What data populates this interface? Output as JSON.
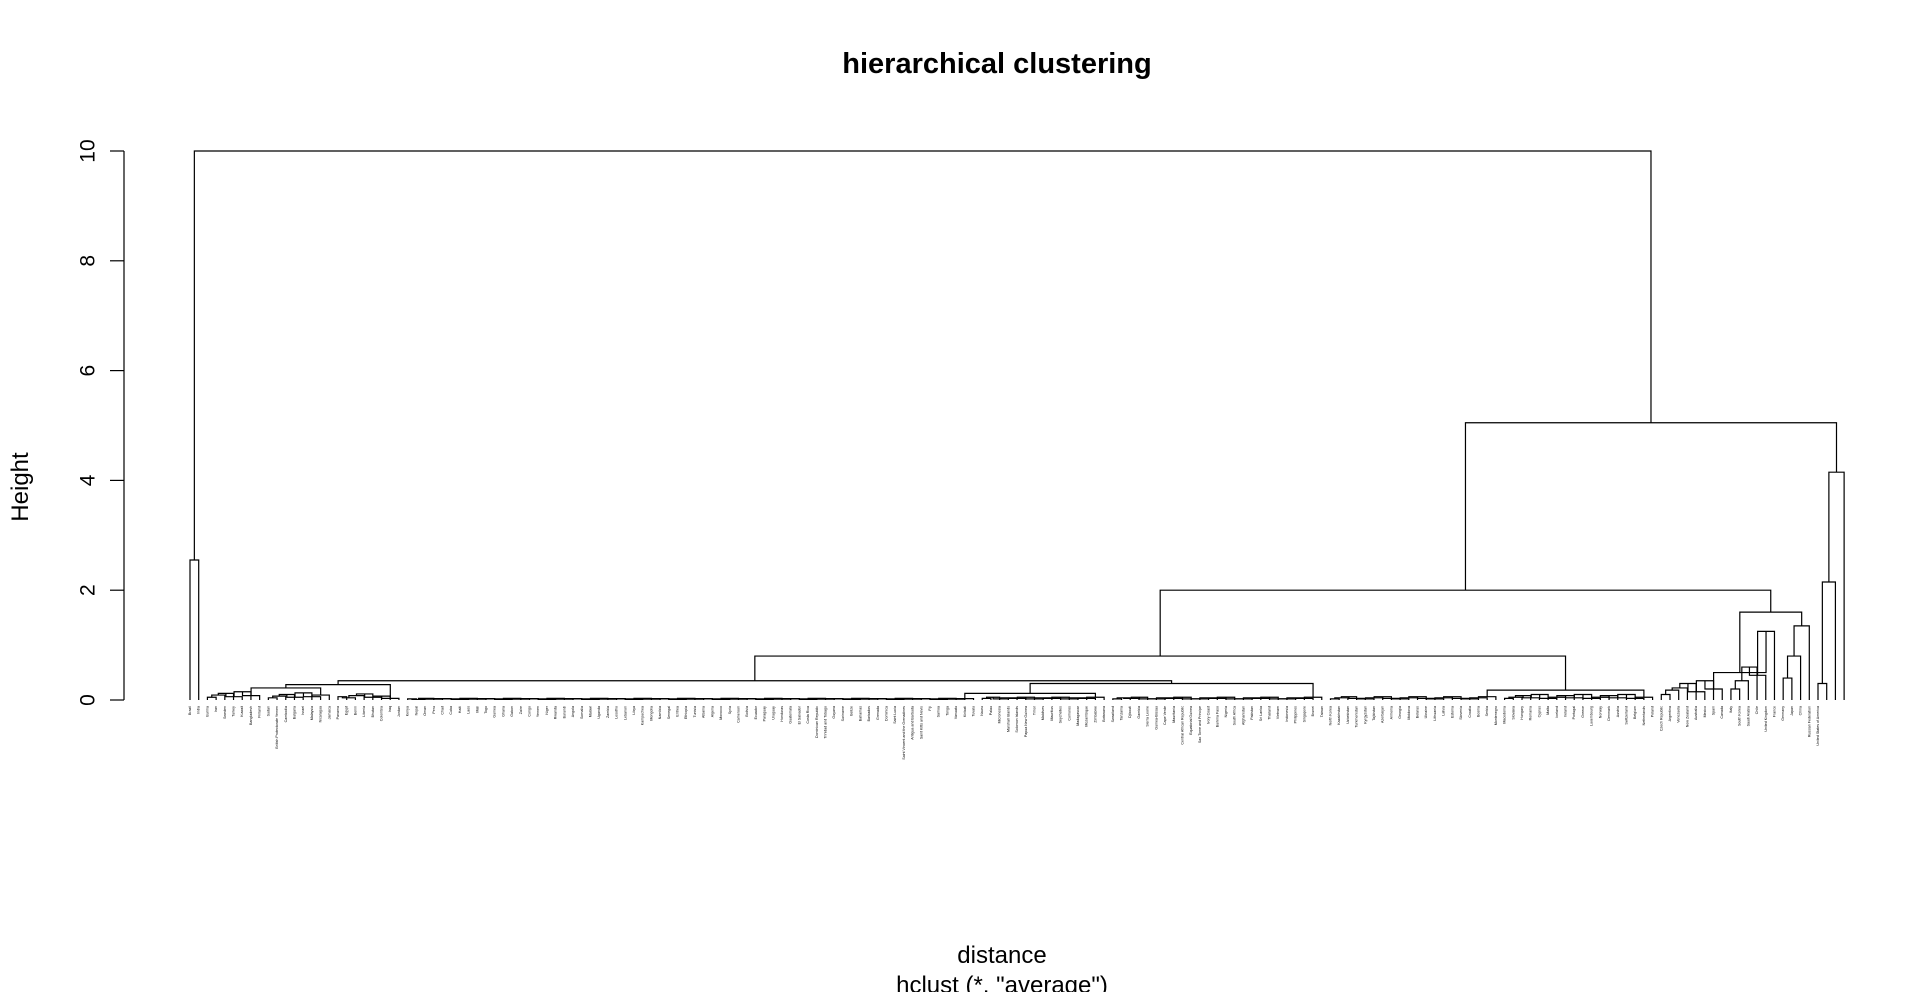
{
  "chart_data": {
    "type": "dendrogram",
    "title": "hierarchical clustering",
    "xlabel": "distance",
    "sub": "hclust (*, \"average\")",
    "ylabel": "Height",
    "ylim": [
      0,
      10.5
    ],
    "yticks": [
      0,
      2,
      4,
      6,
      8,
      10
    ],
    "grid": false,
    "leaves": [
      "Brazil",
      "India",
      "Burma",
      "Iran",
      "Sweden",
      "Turkey",
      "Kuwait",
      "Bangladesh",
      "Finland",
      "Sudan",
      "British Protectorate Yemen",
      "Cambodia",
      "Bulgaria",
      "Israel",
      "Malaysia",
      "Nicaragua",
      "Jamaica",
      "Panama",
      "Egypt",
      "Benin",
      "Liberia",
      "Bhutan",
      "Colombia",
      "Iraq",
      "Jordan",
      "Kenya",
      "Nepal",
      "Oman",
      "Peru",
      "Chad",
      "Cuba",
      "Haiti",
      "Laos",
      "Mali",
      "Togo",
      "Guinea",
      "Ghana",
      "Gabon",
      "Zaire",
      "Congo",
      "Yemen",
      "Niger",
      "Rwanda",
      "Burundi",
      "Angola",
      "Somalia",
      "Malawi",
      "Uganda",
      "Zambia",
      "Lesotho",
      "Lebanon",
      "Libya",
      "Kampuchea",
      "Mongolia",
      "Namibia",
      "Senegal",
      "Eritrea",
      "Ethiopia",
      "Tunisia",
      "Albania",
      "Algeria",
      "Morocco",
      "Syria",
      "Cameroon",
      "Bolivia",
      "Ecuador",
      "Paraguay",
      "Uruguay",
      "Honduras",
      "Guatemala",
      "El Salvador",
      "Costa Rica",
      "Dominican Republic",
      "Trinidad and Tobago",
      "Guyana",
      "Suriname",
      "Belize",
      "Bahamas",
      "Barbados",
      "Grenada",
      "Dominica",
      "Saint Lucia",
      "Saint Vincent and the Grenadines",
      "Antigua and Barbuda",
      "Saint Kitts and Nevis",
      "Fiji",
      "Samoa",
      "Tonga",
      "Vanuatu",
      "Kiribati",
      "Tuvalu",
      "Nauru",
      "Palau",
      "Micronesia",
      "Marshall Islands",
      "Solomon Islands",
      "Papua New Guinea",
      "Timor",
      "Maldives",
      "Mauritius",
      "Seychelles",
      "Comoros",
      "Madagascar",
      "Mozambique",
      "Zimbabwe",
      "Botswana",
      "Swaziland",
      "Tanzania",
      "Djibouti",
      "Gambia",
      "Sierra Leone",
      "Guinea-Bissau",
      "Cape Verde",
      "Mauritania",
      "Central African Republic",
      "Equatorial Guinea",
      "Sao Tome and Principe",
      "Ivory Coast",
      "Burkina Faso",
      "Nigeria",
      "South Africa",
      "Afghanistan",
      "Pakistan",
      "Sri Lanka",
      "Thailand",
      "Vietnam",
      "Indonesia",
      "Philippines",
      "Singapore",
      "Brunei",
      "Taiwan",
      "North Korea",
      "Kazakhstan",
      "Uzbekistan",
      "Turkmenistan",
      "Kyrgyzstan",
      "Tajikistan",
      "Azerbaijan",
      "Armenia",
      "Georgia",
      "Moldova",
      "Belarus",
      "Ukraine",
      "Lithuania",
      "Latvia",
      "Estonia",
      "Slovenia",
      "Croatia",
      "Bosnia",
      "Serbia",
      "Montenegro",
      "Macedonia",
      "Slovakia",
      "Hungary",
      "Romania",
      "Cyprus",
      "Malta",
      "Iceland",
      "Ireland",
      "Portugal",
      "Greece",
      "Luxembourg",
      "Norway",
      "Denmark",
      "Austria",
      "Switzerland",
      "Belgium",
      "Netherlands",
      "Poland",
      "Czech Republic",
      "Argentina",
      "Venezuela",
      "New Zealand",
      "Australia",
      "Mexico",
      "Spain",
      "Canada",
      "Italy",
      "South Korea",
      "Saudi Arabia",
      "Chile",
      "United Kingdom",
      "France",
      "Germany",
      "Japan",
      "China",
      "Russian Federation",
      "United States of America"
    ]
  }
}
